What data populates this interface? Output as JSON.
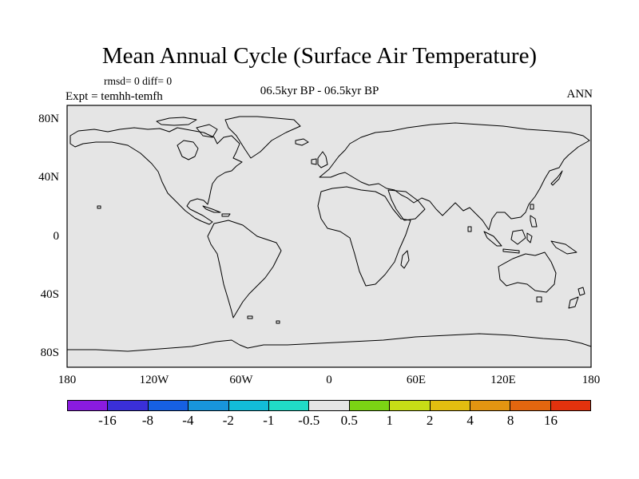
{
  "title": "Mean Annual Cycle (Surface Air Temperature)",
  "stats_text": "rmsd= 0 diff= 0",
  "expt_text": "Expt = temhh-temfh",
  "period_text": "06.5kyr BP - 06.5kyr BP",
  "season_text": "ANN",
  "map": {
    "fill_color": "#e5e5e5",
    "coast_color": "#000000",
    "lat_ticks": [
      "80N",
      "40N",
      "0",
      "40S",
      "80S"
    ],
    "lon_ticks": [
      "180",
      "120W",
      "60W",
      "0",
      "60E",
      "120E",
      "180"
    ]
  },
  "colorbar": {
    "colors": [
      "#8a1be0",
      "#3a2fd8",
      "#1660e3",
      "#1895dc",
      "#12bcd8",
      "#20dcc6",
      "#e5e5e5",
      "#7bd314",
      "#c7dd16",
      "#e2be10",
      "#e39511",
      "#e3660f",
      "#e2320d"
    ],
    "labels": [
      "-16",
      "-8",
      "-4",
      "-2",
      "-1",
      "-0.5",
      "0.5",
      "1",
      "2",
      "4",
      "8",
      "16"
    ]
  }
}
